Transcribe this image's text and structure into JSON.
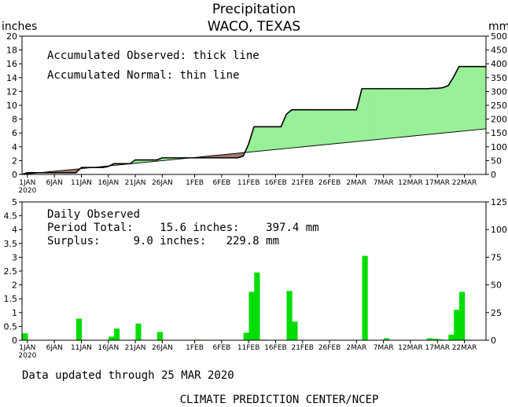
{
  "title": "Precipitation",
  "subtitle": "WACO, TEXAS",
  "footer_updated": "Data updated through 25 MAR 2020",
  "footer_credit": "CLIMATE PREDICTION CENTER/NCEP",
  "colors": {
    "surplus_fill": "#98f098",
    "deficit_fill": "#a07870",
    "bars": "#00dd00",
    "axes": "#000000"
  },
  "chart_data": [
    {
      "type": "area",
      "left_axis_label": "inches",
      "right_axis_label": "mm",
      "legend_lines": [
        "Accumulated Observed: thick line",
        "Accumulated Normal: thin line"
      ],
      "ylim": [
        0,
        20
      ],
      "y_ticks": [
        0,
        2,
        4,
        6,
        8,
        10,
        12,
        14,
        16,
        18,
        20
      ],
      "y2lim_mm": [
        0,
        500
      ],
      "y2_ticks": [
        0,
        50,
        100,
        150,
        200,
        250,
        300,
        350,
        400,
        450,
        500
      ],
      "x_day_range": [
        0,
        86
      ],
      "x_tick_labels": [
        "1JAN",
        "6JAN",
        "11JAN",
        "16JAN",
        "21JAN",
        "26JAN",
        "1FEB",
        "6FEB",
        "11FEB",
        "16FEB",
        "21FEB",
        "26FEB",
        "2MAR",
        "7MAR",
        "12MAR",
        "17MAR",
        "22MAR"
      ],
      "x_tick_days": [
        1,
        6,
        11,
        16,
        21,
        26,
        32,
        37,
        42,
        47,
        52,
        57,
        62,
        67,
        72,
        77,
        82
      ],
      "x_year_label": "2020",
      "observed": {
        "name": "Accumulated Observed",
        "days": [
          0,
          1,
          10,
          11,
          15,
          16,
          17,
          18,
          20,
          21,
          25,
          26,
          40,
          41,
          42,
          43,
          48,
          49,
          50,
          51,
          62,
          63,
          75,
          76,
          77,
          78,
          79,
          80,
          81,
          86
        ],
        "inches": [
          0.0,
          0.25,
          0.25,
          1.0,
          1.0,
          1.15,
          1.55,
          1.55,
          1.55,
          2.1,
          2.1,
          2.4,
          2.4,
          2.65,
          4.4,
          6.9,
          6.9,
          8.7,
          9.35,
          9.35,
          9.35,
          12.4,
          12.4,
          12.45,
          12.45,
          12.55,
          12.85,
          14.1,
          15.6,
          15.6
        ]
      },
      "normal": {
        "name": "Accumulated Normal",
        "days": [
          0,
          86
        ],
        "inches": [
          0.0,
          6.6
        ]
      }
    },
    {
      "type": "bar",
      "legend_lines": [
        "Daily Observed",
        "Period Total:    15.6 inches:    397.4 mm",
        "Surplus:     9.0 inches:   229.8 mm"
      ],
      "ylim": [
        0,
        5
      ],
      "y_ticks": [
        0,
        0.5,
        1,
        1.5,
        2,
        2.5,
        3,
        3.5,
        4,
        4.5,
        5
      ],
      "y_tick_labels": [
        "0",
        "0.5",
        "1",
        "1.5",
        "2",
        "2.5",
        "3",
        "3.5",
        "4",
        "4.5",
        "5"
      ],
      "y2lim_mm": [
        0,
        125
      ],
      "y2_ticks": [
        0,
        25,
        50,
        75,
        100,
        125
      ],
      "days": [
        0,
        10,
        11,
        16,
        17,
        21,
        25,
        32,
        41,
        42,
        43,
        44,
        49,
        50,
        63,
        67,
        75,
        76,
        77,
        79,
        80,
        81,
        82
      ],
      "values": [
        0.25,
        0.78,
        0.02,
        0.13,
        0.42,
        0.6,
        0.3,
        0.02,
        0.27,
        1.75,
        2.45,
        0.02,
        1.78,
        0.67,
        3.05,
        0.07,
        0.07,
        0.05,
        0.03,
        0.2,
        1.1,
        1.75,
        0.02
      ]
    }
  ]
}
